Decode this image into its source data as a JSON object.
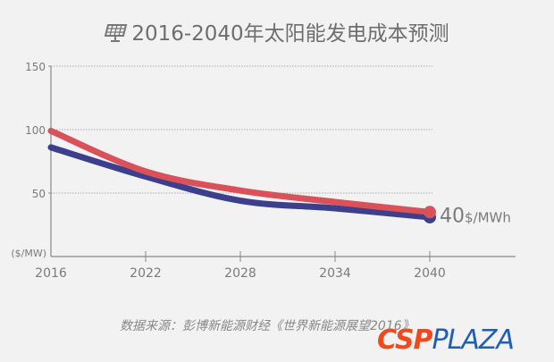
{
  "title": "2016-2040年太阳能发电成本预测",
  "source": "数据来源：彭博新能源财经《世界新能源展望2016》",
  "logo": {
    "part1": "CSP",
    "part2": "PLAZA"
  },
  "chart_data": {
    "type": "line",
    "title": "2016-2040年太阳能发电成本预测",
    "x": [
      2016,
      2022,
      2028,
      2034,
      2040
    ],
    "xticks": [
      "2016",
      "2022",
      "2028",
      "2034",
      "2040"
    ],
    "yticks": [
      "150",
      "100",
      "50"
    ],
    "ylabel": "($/MW)",
    "ylim": [
      0,
      150
    ],
    "grid": true,
    "series": [
      {
        "color": "#d9525a",
        "values": [
          99,
          67,
          52,
          43,
          35
        ]
      },
      {
        "color": "#3b3f8c",
        "values": [
          86,
          63,
          44,
          38,
          31
        ]
      }
    ],
    "annotation": {
      "value": "40",
      "unit": "$/MWh"
    }
  }
}
